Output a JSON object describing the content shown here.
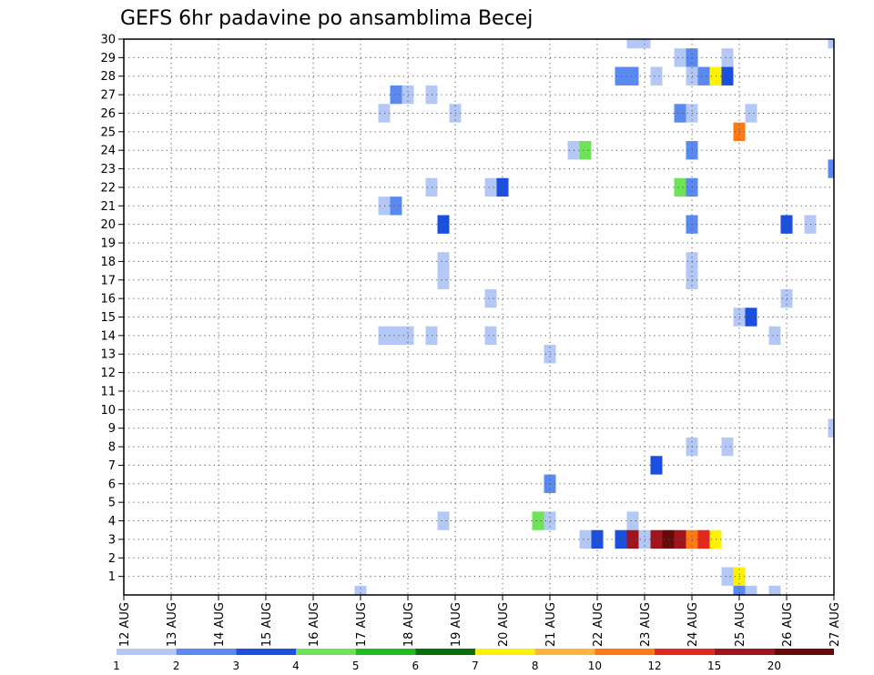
{
  "chart_data": {
    "type": "heatmap",
    "title": "GEFS 6hr padavine po ansamblima Becej",
    "xlabel": "",
    "ylabel": "",
    "x_ticks": [
      "12 AUG",
      "13 AUG",
      "14 AUG",
      "15 AUG",
      "16 AUG",
      "17 AUG",
      "18 AUG",
      "19 AUG",
      "20 AUG",
      "21 AUG",
      "22 AUG",
      "23 AUG",
      "24 AUG",
      "25 AUG",
      "26 AUG",
      "27 AUG"
    ],
    "x_range_days": [
      12,
      27
    ],
    "y_ticks": [
      "1",
      "2",
      "3",
      "4",
      "5",
      "6",
      "7",
      "8",
      "9",
      "10",
      "11",
      "12",
      "13",
      "14",
      "15",
      "16",
      "17",
      "18",
      "19",
      "20",
      "21",
      "22",
      "23",
      "24",
      "25",
      "26",
      "27",
      "28",
      "29",
      "30"
    ],
    "y_range": [
      0,
      30
    ],
    "time_step_hours": 6,
    "grid": true,
    "colorbar": {
      "position": "bottom",
      "labels": [
        "1",
        "2",
        "3",
        "4",
        "5",
        "6",
        "7",
        "8",
        "10",
        "12",
        "15",
        "20"
      ],
      "colors": [
        "#b4c8f5",
        "#5a8af0",
        "#1a4fe0",
        "#6ee35a",
        "#1fbb1f",
        "#0a6e0a",
        "#fff200",
        "#ffb43c",
        "#ff7a14",
        "#e3281e",
        "#a0141e",
        "#640a0a"
      ]
    },
    "cells": [
      {
        "member": 30,
        "day": 22.75,
        "level": 1
      },
      {
        "member": 30,
        "day": 23.0,
        "level": 1
      },
      {
        "member": 30,
        "day": 27.0,
        "level": 1
      },
      {
        "member": 29,
        "day": 23.75,
        "level": 1
      },
      {
        "member": 29,
        "day": 24.0,
        "level": 2
      },
      {
        "member": 29,
        "day": 24.75,
        "level": 1
      },
      {
        "member": 28,
        "day": 22.5,
        "level": 2
      },
      {
        "member": 28,
        "day": 22.75,
        "level": 2
      },
      {
        "member": 28,
        "day": 23.25,
        "level": 1
      },
      {
        "member": 28,
        "day": 24.0,
        "level": 1
      },
      {
        "member": 28,
        "day": 24.25,
        "level": 2
      },
      {
        "member": 28,
        "day": 24.5,
        "level": 7
      },
      {
        "member": 28,
        "day": 24.75,
        "level": 3
      },
      {
        "member": 27,
        "day": 17.75,
        "level": 2
      },
      {
        "member": 27,
        "day": 18.0,
        "level": 1
      },
      {
        "member": 27,
        "day": 18.5,
        "level": 1
      },
      {
        "member": 26,
        "day": 17.5,
        "level": 1
      },
      {
        "member": 26,
        "day": 19.0,
        "level": 1
      },
      {
        "member": 26,
        "day": 23.75,
        "level": 2
      },
      {
        "member": 26,
        "day": 24.0,
        "level": 1
      },
      {
        "member": 26,
        "day": 25.25,
        "level": 1
      },
      {
        "member": 25,
        "day": 25.0,
        "level": 9
      },
      {
        "member": 24,
        "day": 21.5,
        "level": 1
      },
      {
        "member": 24,
        "day": 21.75,
        "level": 4
      },
      {
        "member": 24,
        "day": 24.0,
        "level": 2
      },
      {
        "member": 23,
        "day": 27.0,
        "level": 2
      },
      {
        "member": 22,
        "day": 18.5,
        "level": 1
      },
      {
        "member": 22,
        "day": 19.75,
        "level": 1
      },
      {
        "member": 22,
        "day": 20.0,
        "level": 3
      },
      {
        "member": 22,
        "day": 23.75,
        "level": 4
      },
      {
        "member": 22,
        "day": 24.0,
        "level": 2
      },
      {
        "member": 21,
        "day": 17.5,
        "level": 1
      },
      {
        "member": 21,
        "day": 17.75,
        "level": 2
      },
      {
        "member": 20,
        "day": 18.75,
        "level": 3
      },
      {
        "member": 20,
        "day": 24.0,
        "level": 2
      },
      {
        "member": 20,
        "day": 26.0,
        "level": 3
      },
      {
        "member": 20,
        "day": 26.5,
        "level": 1
      },
      {
        "member": 18,
        "day": 18.75,
        "level": 1
      },
      {
        "member": 18,
        "day": 24.0,
        "level": 1
      },
      {
        "member": 17,
        "day": 18.75,
        "level": 1
      },
      {
        "member": 17,
        "day": 24.0,
        "level": 1
      },
      {
        "member": 16,
        "day": 19.75,
        "level": 1
      },
      {
        "member": 16,
        "day": 26.0,
        "level": 1
      },
      {
        "member": 15,
        "day": 25.0,
        "level": 1
      },
      {
        "member": 15,
        "day": 25.25,
        "level": 3
      },
      {
        "member": 14,
        "day": 17.5,
        "level": 1
      },
      {
        "member": 14,
        "day": 17.75,
        "level": 1
      },
      {
        "member": 14,
        "day": 18.0,
        "level": 1
      },
      {
        "member": 14,
        "day": 18.5,
        "level": 1
      },
      {
        "member": 14,
        "day": 19.75,
        "level": 1
      },
      {
        "member": 14,
        "day": 25.75,
        "level": 1
      },
      {
        "member": 13,
        "day": 21.0,
        "level": 1
      },
      {
        "member": 9,
        "day": 27.0,
        "level": 1
      },
      {
        "member": 8,
        "day": 24.0,
        "level": 1
      },
      {
        "member": 8,
        "day": 24.75,
        "level": 1
      },
      {
        "member": 7,
        "day": 23.25,
        "level": 3
      },
      {
        "member": 6,
        "day": 21.0,
        "level": 2
      },
      {
        "member": 4,
        "day": 18.75,
        "level": 1
      },
      {
        "member": 4,
        "day": 20.75,
        "level": 4
      },
      {
        "member": 4,
        "day": 21.0,
        "level": 1
      },
      {
        "member": 4,
        "day": 22.75,
        "level": 1
      },
      {
        "member": 3,
        "day": 21.75,
        "level": 1
      },
      {
        "member": 3,
        "day": 22.0,
        "level": 3
      },
      {
        "member": 3,
        "day": 22.5,
        "level": 3
      },
      {
        "member": 3,
        "day": 22.75,
        "level": 11
      },
      {
        "member": 3,
        "day": 23.0,
        "level": 1
      },
      {
        "member": 3,
        "day": 23.25,
        "level": 11
      },
      {
        "member": 3,
        "day": 23.5,
        "level": 12
      },
      {
        "member": 3,
        "day": 23.75,
        "level": 11
      },
      {
        "member": 3,
        "day": 24.0,
        "level": 9
      },
      {
        "member": 3,
        "day": 24.25,
        "level": 10
      },
      {
        "member": 3,
        "day": 24.5,
        "level": 7
      },
      {
        "member": 1,
        "day": 24.75,
        "level": 1
      },
      {
        "member": 1,
        "day": 25.0,
        "level": 7
      },
      {
        "member": 0,
        "day": 17.0,
        "level": 1
      },
      {
        "member": 0,
        "day": 25.0,
        "level": 2
      },
      {
        "member": 0,
        "day": 25.25,
        "level": 1
      },
      {
        "member": 0,
        "day": 25.75,
        "level": 1
      }
    ]
  }
}
